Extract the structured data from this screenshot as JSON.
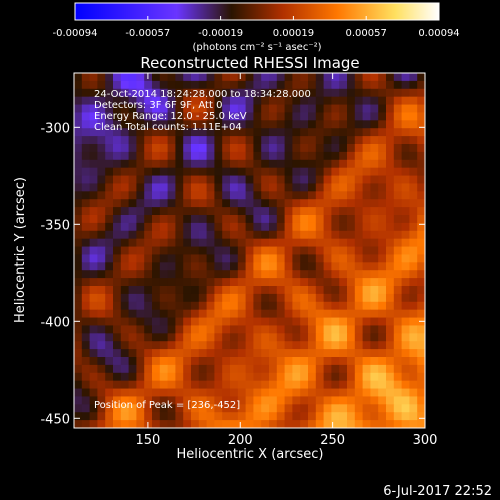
{
  "chart_data": {
    "type": "heatmap",
    "title": "Reconstructed RHESSI Image",
    "xlabel": "Heliocentric X (arcsec)",
    "ylabel": "Heliocentric Y (arcsec)",
    "xlim": [
      110,
      300
    ],
    "ylim": [
      -455,
      -272
    ],
    "xticks": [
      150,
      200,
      250,
      300
    ],
    "yticks": [
      -300,
      -350,
      -400,
      -450
    ],
    "colorbar": {
      "min": -0.00094,
      "max": 0.00094,
      "ticks": [
        "-0.00094",
        "-0.00057",
        "-0.00019",
        "0.00019",
        "0.00057",
        "0.00094"
      ],
      "unit_label": "(photons cm⁻² s⁻¹ asec⁻²)",
      "colors": [
        "#0000ff",
        "#6a35ff",
        "#2a1400",
        "#b03000",
        "#ff7700",
        "#ffe060",
        "#ffffff"
      ]
    },
    "annotations": [
      "24-Oct-2014 18:24:28.000 to 18:34:28.000",
      "Detectors: 3F 6F 9F, Att 0",
      "Energy Range: 12.0 - 25.0 keV",
      "Clean    Total counts: 1.11E+04",
      "Position of Peak = [236,-452]"
    ],
    "peak": {
      "x": 236,
      "y": -452
    },
    "timestamp": "6-Jul-2017 22:52",
    "grid": false
  }
}
